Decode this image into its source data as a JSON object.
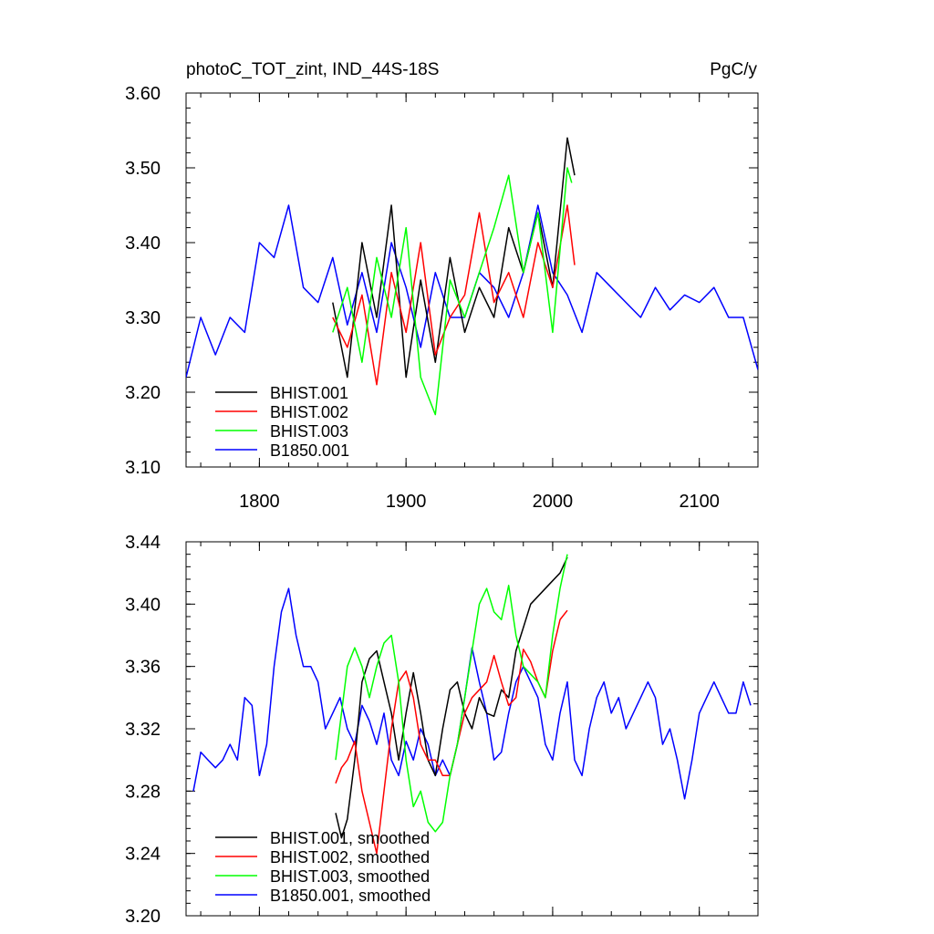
{
  "figure": {
    "title_left": "photoC_TOT_zint, IND_44S-18S",
    "title_right": "PgC/y"
  },
  "colors": {
    "BHIST.001": "#000000",
    "BHIST.002": "#ff0000",
    "BHIST.003": "#00ff00",
    "B1850.001": "#0000ff"
  },
  "chart_data": [
    {
      "type": "line",
      "panel": "top",
      "title": "photoC_TOT_zint, IND_44S-18S",
      "units": "PgC/y",
      "xlim": [
        1750,
        2140
      ],
      "ylim": [
        3.1,
        3.6
      ],
      "x_ticks": [
        1800,
        1900,
        2000,
        2100
      ],
      "x_tick_labels": [
        "1800",
        "1900",
        "2000",
        "2100"
      ],
      "y_ticks": [
        3.1,
        3.2,
        3.3,
        3.4,
        3.5,
        3.6
      ],
      "y_tick_labels": [
        "3.10",
        "3.20",
        "3.30",
        "3.40",
        "3.50",
        "3.60"
      ],
      "legend_position": "bottom-left",
      "series": [
        {
          "name": "BHIST.001",
          "color": "#000000",
          "x": [
            1850,
            1860,
            1870,
            1880,
            1890,
            1900,
            1910,
            1920,
            1930,
            1940,
            1950,
            1960,
            1970,
            1980,
            1990,
            2000,
            2010,
            2015
          ],
          "y": [
            3.32,
            3.22,
            3.4,
            3.3,
            3.45,
            3.22,
            3.35,
            3.24,
            3.38,
            3.28,
            3.34,
            3.3,
            3.42,
            3.36,
            3.44,
            3.34,
            3.54,
            3.49
          ]
        },
        {
          "name": "BHIST.002",
          "color": "#ff0000",
          "x": [
            1850,
            1860,
            1870,
            1880,
            1890,
            1900,
            1910,
            1920,
            1930,
            1940,
            1950,
            1960,
            1970,
            1980,
            1990,
            2000,
            2010,
            2015
          ],
          "y": [
            3.3,
            3.26,
            3.33,
            3.21,
            3.36,
            3.28,
            3.4,
            3.25,
            3.3,
            3.33,
            3.44,
            3.32,
            3.36,
            3.3,
            3.4,
            3.34,
            3.45,
            3.37
          ]
        },
        {
          "name": "BHIST.003",
          "color": "#00ff00",
          "x": [
            1850,
            1860,
            1870,
            1880,
            1890,
            1900,
            1910,
            1920,
            1930,
            1940,
            1950,
            1960,
            1970,
            1980,
            1990,
            2000,
            2010,
            2013
          ],
          "y": [
            3.28,
            3.34,
            3.24,
            3.38,
            3.3,
            3.42,
            3.22,
            3.17,
            3.35,
            3.3,
            3.36,
            3.42,
            3.49,
            3.36,
            3.44,
            3.28,
            3.5,
            3.48
          ]
        },
        {
          "name": "B1850.001",
          "color": "#0000ff",
          "x": [
            1750,
            1760,
            1770,
            1780,
            1790,
            1800,
            1810,
            1820,
            1830,
            1840,
            1850,
            1860,
            1870,
            1880,
            1890,
            1900,
            1910,
            1920,
            1930,
            1940,
            1950,
            1960,
            1970,
            1980,
            1990,
            2000,
            2010,
            2020,
            2030,
            2040,
            2050,
            2060,
            2070,
            2080,
            2090,
            2100,
            2110,
            2120,
            2130,
            2140
          ],
          "y": [
            3.22,
            3.3,
            3.25,
            3.3,
            3.28,
            3.4,
            3.38,
            3.45,
            3.34,
            3.32,
            3.38,
            3.29,
            3.36,
            3.28,
            3.4,
            3.34,
            3.26,
            3.36,
            3.3,
            3.3,
            3.36,
            3.34,
            3.3,
            3.36,
            3.45,
            3.36,
            3.33,
            3.28,
            3.36,
            3.34,
            3.32,
            3.3,
            3.34,
            3.31,
            3.33,
            3.32,
            3.34,
            3.3,
            3.3,
            3.23
          ]
        }
      ]
    },
    {
      "type": "line",
      "panel": "bottom",
      "xlim": [
        1750,
        2140
      ],
      "ylim": [
        3.2,
        3.44
      ],
      "x_ticks": [
        1800,
        1900,
        2000,
        2100
      ],
      "y_ticks": [
        3.2,
        3.24,
        3.28,
        3.32,
        3.36,
        3.4,
        3.44
      ],
      "y_tick_labels": [
        "3.20",
        "3.24",
        "3.28",
        "3.32",
        "3.36",
        "3.40",
        "3.44"
      ],
      "legend_position": "bottom-left",
      "series": [
        {
          "name": "BHIST.001, smoothed",
          "color": "#000000",
          "x": [
            1852,
            1856,
            1860,
            1865,
            1870,
            1875,
            1880,
            1885,
            1890,
            1895,
            1900,
            1905,
            1910,
            1915,
            1920,
            1925,
            1930,
            1935,
            1940,
            1945,
            1950,
            1955,
            1960,
            1965,
            1970,
            1975,
            1980,
            1985,
            1990,
            1995,
            2000,
            2005,
            2010
          ],
          "y": [
            3.266,
            3.25,
            3.262,
            3.3,
            3.35,
            3.365,
            3.37,
            3.35,
            3.33,
            3.3,
            3.33,
            3.356,
            3.33,
            3.3,
            3.29,
            3.32,
            3.345,
            3.35,
            3.33,
            3.32,
            3.34,
            3.33,
            3.328,
            3.345,
            3.34,
            3.37,
            3.385,
            3.4,
            3.405,
            3.41,
            3.415,
            3.42,
            3.43
          ]
        },
        {
          "name": "BHIST.002, smoothed",
          "color": "#ff0000",
          "x": [
            1852,
            1856,
            1860,
            1865,
            1870,
            1875,
            1880,
            1885,
            1890,
            1895,
            1900,
            1905,
            1910,
            1915,
            1920,
            1925,
            1930,
            1935,
            1940,
            1945,
            1950,
            1955,
            1960,
            1965,
            1970,
            1975,
            1980,
            1985,
            1990,
            1995,
            2000,
            2005,
            2010
          ],
          "y": [
            3.285,
            3.295,
            3.3,
            3.312,
            3.28,
            3.26,
            3.24,
            3.28,
            3.32,
            3.35,
            3.357,
            3.34,
            3.31,
            3.3,
            3.3,
            3.29,
            3.29,
            3.31,
            3.33,
            3.34,
            3.345,
            3.35,
            3.367,
            3.35,
            3.335,
            3.34,
            3.371,
            3.363,
            3.35,
            3.34,
            3.37,
            3.39,
            3.396
          ]
        },
        {
          "name": "BHIST.003, smoothed",
          "color": "#00ff00",
          "x": [
            1852,
            1856,
            1860,
            1865,
            1870,
            1875,
            1880,
            1885,
            1890,
            1895,
            1900,
            1905,
            1910,
            1915,
            1920,
            1925,
            1930,
            1935,
            1940,
            1945,
            1950,
            1955,
            1960,
            1965,
            1970,
            1975,
            1980,
            1985,
            1990,
            1995,
            2000,
            2005,
            2010
          ],
          "y": [
            3.3,
            3.33,
            3.36,
            3.372,
            3.36,
            3.34,
            3.36,
            3.375,
            3.38,
            3.35,
            3.3,
            3.27,
            3.28,
            3.26,
            3.254,
            3.26,
            3.29,
            3.31,
            3.34,
            3.37,
            3.4,
            3.41,
            3.395,
            3.39,
            3.412,
            3.38,
            3.36,
            3.355,
            3.35,
            3.34,
            3.38,
            3.41,
            3.432
          ]
        },
        {
          "name": "B1850.001, smoothed",
          "color": "#0000ff",
          "x": [
            1755,
            1760,
            1765,
            1770,
            1775,
            1780,
            1785,
            1790,
            1795,
            1800,
            1805,
            1810,
            1815,
            1820,
            1825,
            1830,
            1835,
            1840,
            1845,
            1850,
            1855,
            1860,
            1865,
            1870,
            1875,
            1880,
            1885,
            1890,
            1895,
            1900,
            1905,
            1910,
            1915,
            1920,
            1925,
            1930,
            1935,
            1940,
            1945,
            1950,
            1955,
            1960,
            1965,
            1970,
            1975,
            1980,
            1985,
            1990,
            1995,
            2000,
            2005,
            2010,
            2015,
            2020,
            2025,
            2030,
            2035,
            2040,
            2045,
            2050,
            2055,
            2060,
            2065,
            2070,
            2075,
            2080,
            2085,
            2090,
            2095,
            2100,
            2105,
            2110,
            2115,
            2120,
            2125,
            2130,
            2135
          ],
          "y": [
            3.28,
            3.305,
            3.3,
            3.295,
            3.3,
            3.31,
            3.3,
            3.34,
            3.335,
            3.29,
            3.31,
            3.36,
            3.395,
            3.41,
            3.38,
            3.36,
            3.36,
            3.35,
            3.32,
            3.33,
            3.34,
            3.32,
            3.31,
            3.335,
            3.325,
            3.31,
            3.33,
            3.3,
            3.29,
            3.312,
            3.3,
            3.32,
            3.31,
            3.29,
            3.3,
            3.29,
            3.31,
            3.34,
            3.372,
            3.35,
            3.33,
            3.3,
            3.305,
            3.33,
            3.35,
            3.36,
            3.35,
            3.34,
            3.31,
            3.3,
            3.33,
            3.35,
            3.3,
            3.29,
            3.32,
            3.34,
            3.35,
            3.33,
            3.34,
            3.32,
            3.33,
            3.34,
            3.35,
            3.34,
            3.31,
            3.32,
            3.3,
            3.275,
            3.3,
            3.33,
            3.34,
            3.35,
            3.34,
            3.33,
            3.33,
            3.35,
            3.335
          ]
        }
      ]
    }
  ]
}
